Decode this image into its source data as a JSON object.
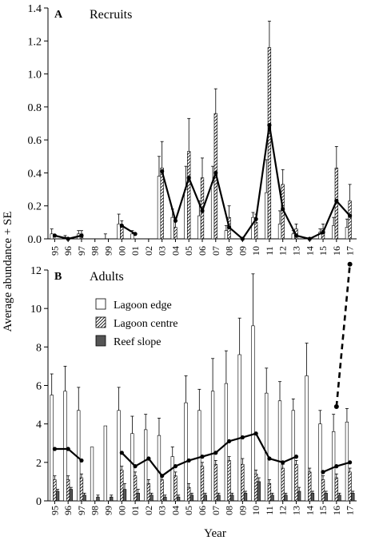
{
  "figure": {
    "ylabel": "Average abundance + SE",
    "xlabel": "Year"
  },
  "chart_data": [
    {
      "type": "bar",
      "panel_letter": "A",
      "panel_title": "Recruits",
      "categories": [
        "95",
        "96",
        "97",
        "98",
        "99",
        "00",
        "01",
        "02",
        "03",
        "04",
        "05",
        "06",
        "07",
        "08",
        "09",
        "10",
        "11",
        "12",
        "13",
        "14",
        "15",
        "16",
        "17"
      ],
      "yticks": [
        "0.0",
        "0.2",
        "0.4",
        "0.6",
        "0.8",
        "1.0",
        "1.2",
        "1.4"
      ],
      "ylim": [
        0,
        1.4
      ],
      "series": [
        {
          "values": [
            0.03,
            0.01,
            0.03,
            0,
            0,
            0.09,
            0.03,
            0,
            0.38,
            0.13,
            0.3,
            0.14,
            0.34,
            0.05,
            0,
            0.13,
            0.28,
            0.09,
            0.03,
            0,
            0.04,
            0.08,
            0.07
          ],
          "errors": [
            0.03,
            0.01,
            0.02,
            0,
            0.03,
            0.06,
            0.02,
            0,
            0.12,
            0.05,
            0.14,
            0.09,
            0.1,
            0.03,
            0,
            0.03,
            0.2,
            0.08,
            0.02,
            0,
            0.02,
            0.05,
            0.05
          ]
        },
        {
          "values": [
            0,
            0,
            0.03,
            0,
            0,
            0.08,
            0,
            0,
            0.43,
            0.07,
            0.53,
            0.37,
            0.76,
            0.13,
            0,
            0.1,
            1.16,
            0.33,
            0.06,
            0,
            0.06,
            0.43,
            0.23
          ],
          "errors": [
            0,
            0,
            0.02,
            0,
            0,
            0.03,
            0,
            0,
            0.16,
            0.04,
            0.2,
            0.12,
            0.15,
            0.07,
            0,
            0.05,
            0.16,
            0.09,
            0.03,
            0,
            0.03,
            0.13,
            0.1
          ]
        },
        {
          "values": [
            0,
            0,
            0,
            0,
            0,
            0,
            0,
            0,
            0,
            0,
            0,
            0,
            0,
            0,
            0,
            0,
            0,
            0,
            0,
            0,
            0,
            0,
            0
          ],
          "errors": [
            0,
            0,
            0,
            0,
            0,
            0,
            0,
            0,
            0,
            0,
            0,
            0,
            0,
            0,
            0,
            0,
            0,
            0,
            0,
            0,
            0,
            0,
            0
          ]
        }
      ],
      "mean_line": {
        "values": [
          0.02,
          0,
          0.02,
          null,
          null,
          0.08,
          0.03,
          null,
          0.41,
          0.11,
          0.37,
          0.17,
          0.4,
          0.07,
          0,
          0.12,
          0.69,
          0.18,
          0.02,
          0,
          0.04,
          0.23,
          0.14
        ]
      },
      "extra_lines": []
    },
    {
      "type": "bar",
      "panel_letter": "B",
      "panel_title": "Adults",
      "categories": [
        "95",
        "96",
        "97",
        "98",
        "99",
        "00",
        "01",
        "02",
        "03",
        "04",
        "05",
        "06",
        "07",
        "08",
        "09",
        "10",
        "11",
        "12",
        "13",
        "14",
        "15",
        "16",
        "17"
      ],
      "yticks": [
        "0",
        "2",
        "4",
        "6",
        "8",
        "10",
        "12"
      ],
      "ylim": [
        0,
        12
      ],
      "series": [
        {
          "name": "Lagoon edge",
          "values": [
            5.5,
            5.7,
            4.7,
            2.8,
            3.9,
            4.7,
            3.5,
            3.7,
            3.4,
            2.3,
            5.1,
            4.7,
            5.7,
            6.1,
            7.6,
            9.1,
            5.6,
            5.2,
            4.7,
            6.5,
            4.0,
            3.6,
            4.1
          ],
          "errors": [
            1.1,
            1.3,
            1.2,
            0,
            0,
            1.2,
            0.9,
            0.8,
            0.9,
            0.5,
            1.4,
            1.1,
            1.7,
            1.7,
            1.9,
            2.7,
            1.3,
            1.0,
            0.6,
            1.7,
            0.7,
            0.9,
            0.7
          ]
        },
        {
          "name": "Lagoon centre",
          "values": [
            1.1,
            1.1,
            1.2,
            0,
            0,
            1.6,
            1.3,
            0.9,
            1.1,
            1.3,
            0.7,
            1.8,
            1.9,
            2.1,
            1.9,
            1.4,
            0.9,
            1.7,
            1.9,
            1.5,
            1.1,
            1.2,
            1.5
          ],
          "errors": [
            0.2,
            0.2,
            0.2,
            0,
            0,
            0.2,
            0.2,
            0.2,
            0.2,
            0.2,
            0.2,
            0.2,
            0.2,
            0.2,
            0.3,
            0.2,
            0.2,
            0.2,
            0.2,
            0.2,
            0.2,
            0.2,
            0.2
          ]
        },
        {
          "name": "Reef slope",
          "values": [
            0.5,
            0.6,
            0.3,
            0.2,
            0.2,
            0.6,
            0.4,
            0.3,
            0.2,
            0.2,
            0.3,
            0.3,
            0.3,
            0.3,
            0.4,
            1.0,
            0.3,
            0.3,
            0.5,
            0.4,
            0.4,
            0.3,
            0.4
          ],
          "errors": [
            0.1,
            0.1,
            0.1,
            0.1,
            0.1,
            0.3,
            0.2,
            0.1,
            0.1,
            0.1,
            0.1,
            0.1,
            0.1,
            0.1,
            0.1,
            0.2,
            0.1,
            0.1,
            0.2,
            0.1,
            0.1,
            0.1,
            0.1
          ]
        }
      ],
      "mean_line": {
        "values": [
          2.7,
          2.7,
          2.1,
          null,
          null,
          2.5,
          1.8,
          2.2,
          1.3,
          1.8,
          2.1,
          2.3,
          2.5,
          3.1,
          3.3,
          3.5,
          2.2,
          2.0,
          2.3,
          null,
          1.5,
          1.8,
          2.0
        ]
      },
      "extra_lines": [
        {
          "style": "dashed",
          "x": [
            "16",
            "17"
          ],
          "y": [
            4.9,
            12.3
          ]
        }
      ]
    }
  ]
}
